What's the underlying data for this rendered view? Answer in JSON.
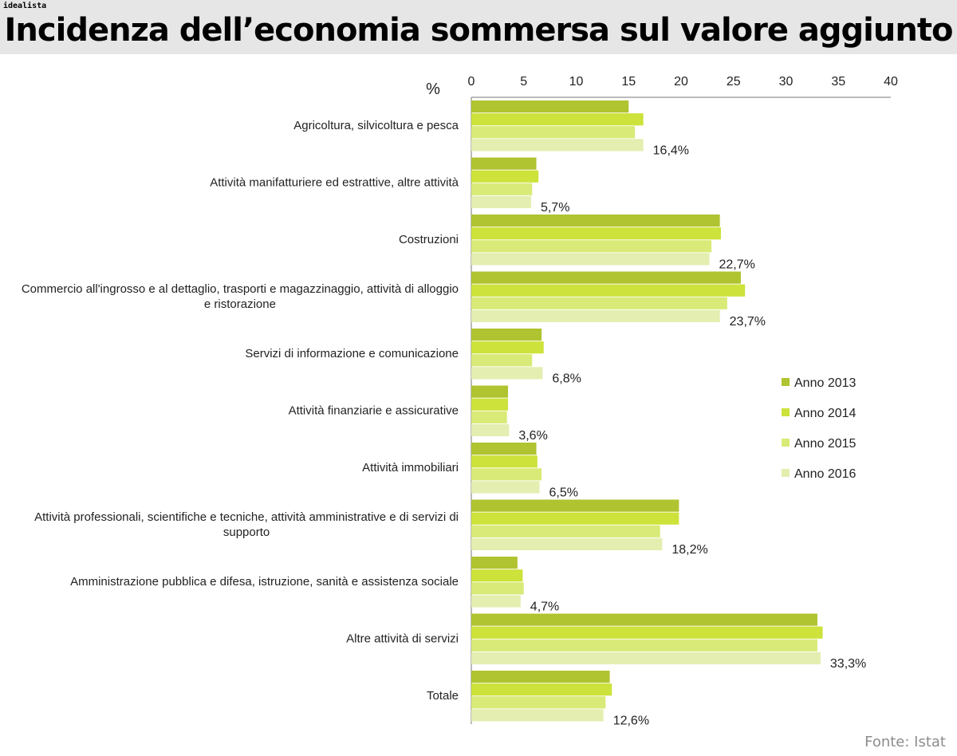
{
  "brand": "idealista",
  "title": "Incidenza dell’economia sommersa sul valore aggiunto",
  "source": "Fonte: Istat",
  "colors": {
    "Anno 2013": "#b0c330",
    "Anno 2014": "#cde23a",
    "Anno 2015": "#d9ea78",
    "Anno 2016": "#e3eeb0"
  },
  "chart_data": {
    "type": "bar",
    "orientation": "horizontal",
    "title": "Incidenza dell’economia sommersa sul valore aggiunto",
    "xlabel": "%",
    "ylabel": "",
    "xlim": [
      0,
      40
    ],
    "xticks": [
      0,
      5,
      10,
      15,
      20,
      25,
      30,
      35,
      40
    ],
    "grid": false,
    "legend_position": "right",
    "categories": [
      [
        "Agricoltura, silvicoltura e pesca"
      ],
      [
        "Attività manifatturiere ed estrattive, altre attività"
      ],
      [
        "Costruzioni"
      ],
      [
        "Commercio all'ingrosso e al dettaglio, trasporti e magazzinaggio, attività di alloggio",
        "e ristorazione"
      ],
      [
        "Servizi di informazione e comunicazione"
      ],
      [
        "Attività finanziarie e assicurative"
      ],
      [
        "Attività immobiliari"
      ],
      [
        "Attività professionali, scientifiche e tecniche, attività amministrative e di servizi di",
        "supporto"
      ],
      [
        "Amministrazione pubblica e difesa, istruzione, sanità e assistenza sociale"
      ],
      [
        "Altre attività di servizi"
      ],
      [
        "Totale"
      ]
    ],
    "series": [
      {
        "name": "Anno 2013",
        "values": [
          15.0,
          6.2,
          23.7,
          25.7,
          6.7,
          3.5,
          6.2,
          19.8,
          4.4,
          33.0,
          13.2
        ]
      },
      {
        "name": "Anno 2014",
        "values": [
          16.4,
          6.4,
          23.8,
          26.1,
          6.9,
          3.5,
          6.3,
          19.8,
          4.9,
          33.5,
          13.4
        ]
      },
      {
        "name": "Anno 2015",
        "values": [
          15.6,
          5.8,
          22.9,
          24.4,
          5.8,
          3.4,
          6.7,
          18.0,
          5.0,
          33.0,
          12.8
        ]
      },
      {
        "name": "Anno 2016",
        "values": [
          16.4,
          5.7,
          22.7,
          23.7,
          6.8,
          3.6,
          6.5,
          18.2,
          4.7,
          33.3,
          12.6
        ]
      }
    ],
    "data_labels": [
      "16,4%",
      "5,7%",
      "22,7%",
      "23,7%",
      "6,8%",
      "3,6%",
      "6,5%",
      "18,2%",
      "4,7%",
      "33,3%",
      "12,6%"
    ]
  }
}
